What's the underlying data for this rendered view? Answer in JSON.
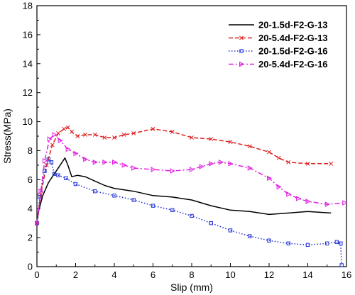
{
  "chart_data": {
    "type": "line",
    "title": "",
    "xlabel": "Slip (mm)",
    "ylabel": "Stress(MPa)",
    "xlim": [
      0,
      16
    ],
    "ylim": [
      0,
      18
    ],
    "xticks": [
      "0",
      "2",
      "4",
      "6",
      "8",
      "10",
      "12",
      "14",
      "16"
    ],
    "yticks": [
      "0",
      "2",
      "4",
      "6",
      "8",
      "10",
      "12",
      "14",
      "16",
      "18"
    ],
    "grid": false,
    "legend_position": "top-right",
    "series": [
      {
        "name": "20-1.5d-F2-G-13",
        "color": "#000000",
        "marker": "none",
        "dash": "solid",
        "x": [
          0,
          0.1,
          0.3,
          0.6,
          0.9,
          1.2,
          1.45,
          1.6,
          1.8,
          2.1,
          2.5,
          3,
          3.5,
          4,
          5,
          6,
          7,
          8,
          9,
          10,
          11,
          12,
          13,
          14,
          15.2
        ],
        "y": [
          3.0,
          3.9,
          4.9,
          5.8,
          6.4,
          7.0,
          7.5,
          7.0,
          6.2,
          6.3,
          6.2,
          5.9,
          5.6,
          5.4,
          5.2,
          4.9,
          4.8,
          4.6,
          4.2,
          3.9,
          3.8,
          3.6,
          3.7,
          3.8,
          3.7
        ]
      },
      {
        "name": "20-5.4d-F2-G-13",
        "color": "#e02020",
        "marker": "x",
        "dash": "dashed",
        "x": [
          0,
          0.2,
          0.5,
          0.8,
          1.1,
          1.4,
          1.6,
          1.8,
          2.1,
          2.5,
          3,
          3.5,
          4,
          4.5,
          5,
          6,
          7,
          8,
          9,
          10,
          11,
          12,
          12.5,
          13,
          14,
          15.2
        ],
        "y": [
          3.0,
          5.0,
          7.0,
          8.4,
          9.2,
          9.5,
          9.6,
          9.3,
          9.0,
          9.1,
          9.1,
          8.9,
          8.9,
          9.1,
          9.2,
          9.5,
          9.3,
          8.9,
          8.8,
          8.6,
          8.3,
          7.9,
          7.5,
          7.2,
          7.1,
          7.1
        ]
      },
      {
        "name": "20-1.5d-F2-G-16",
        "color": "#1f2fd6",
        "marker": "square",
        "dash": "dotted",
        "x": [
          0,
          0.15,
          0.4,
          0.6,
          0.75,
          0.9,
          1.1,
          1.5,
          2,
          3,
          4,
          5,
          6,
          7,
          8,
          9,
          10,
          11,
          12,
          13,
          14,
          15,
          15.5,
          15.7,
          15.75
        ],
        "y": [
          3.0,
          4.8,
          6.6,
          7.4,
          7.2,
          6.4,
          6.3,
          6.1,
          5.7,
          5.2,
          4.9,
          4.6,
          4.2,
          3.9,
          3.5,
          3.0,
          2.5,
          2.1,
          1.8,
          1.6,
          1.5,
          1.6,
          1.7,
          1.6,
          0.1
        ]
      },
      {
        "name": "20-5.4d-F2-G-16",
        "color": "#e020e0",
        "marker": "triangle-right",
        "dash": "dash-dot",
        "x": [
          0,
          0.2,
          0.4,
          0.65,
          0.9,
          1.2,
          1.6,
          2,
          2.5,
          3,
          3.5,
          4,
          4.5,
          5,
          6,
          7,
          8,
          8.5,
          9,
          9.5,
          10,
          11,
          12,
          12.5,
          13,
          13.5,
          14,
          15,
          15.9
        ],
        "y": [
          3.0,
          5.2,
          7.3,
          8.8,
          9.1,
          8.7,
          8.1,
          7.8,
          7.4,
          7.2,
          7.2,
          7.2,
          7.0,
          6.8,
          6.7,
          6.6,
          6.7,
          6.9,
          7.1,
          7.2,
          7.1,
          6.8,
          6.1,
          5.5,
          5.0,
          4.7,
          4.5,
          4.3,
          4.4
        ]
      }
    ]
  }
}
